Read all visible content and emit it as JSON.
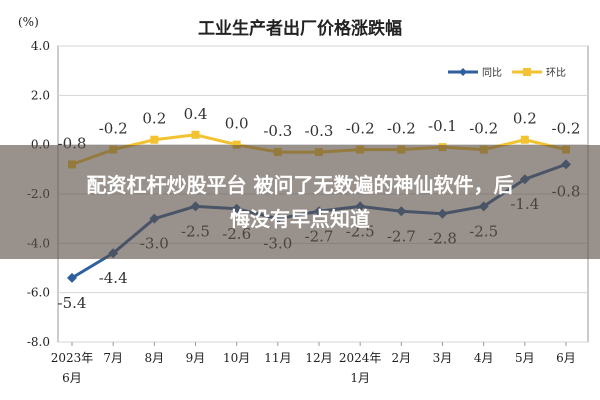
{
  "chart_data": {
    "type": "line",
    "title": "工业生产者出厂价格涨跌幅",
    "y_unit_label": "(%)",
    "ylim": [
      -8.0,
      4.0
    ],
    "y_ticks": [
      "4.0",
      "2.0",
      "0.0",
      "-2.0",
      "-4.0",
      "-6.0",
      "-8.0"
    ],
    "y_tick_values": [
      4,
      2,
      0,
      -2,
      -4,
      -6,
      -8
    ],
    "categories": [
      {
        "line1": "2023年",
        "line2": "6月"
      },
      {
        "line1": "7月",
        "line2": ""
      },
      {
        "line1": "8月",
        "line2": ""
      },
      {
        "line1": "9月",
        "line2": ""
      },
      {
        "line1": "10月",
        "line2": ""
      },
      {
        "line1": "11月",
        "line2": ""
      },
      {
        "line1": "12月",
        "line2": ""
      },
      {
        "line1": "2024年",
        "line2": "1月"
      },
      {
        "line1": "2月",
        "line2": ""
      },
      {
        "line1": "3月",
        "line2": ""
      },
      {
        "line1": "4月",
        "line2": ""
      },
      {
        "line1": "5月",
        "line2": ""
      },
      {
        "line1": "6月",
        "line2": ""
      }
    ],
    "grid": true,
    "legend_position": "top-right",
    "series": [
      {
        "name": "同比",
        "color": "#2e5f9e",
        "values": [
          -5.4,
          -4.4,
          -3.0,
          -2.5,
          -2.6,
          -3.0,
          -2.7,
          -2.5,
          -2.7,
          -2.8,
          -2.5,
          -1.4,
          -0.8
        ],
        "labels": [
          "-5.4",
          "-4.4",
          "-3.0",
          "-2.5",
          "-2.6",
          "-3.0",
          "-2.7",
          "-2.5",
          "-2.7",
          "-2.8",
          "-2.5",
          "-1.4",
          "-0.8"
        ]
      },
      {
        "name": "环比",
        "color": "#f2c230",
        "values": [
          -0.8,
          -0.2,
          0.2,
          0.4,
          0.0,
          -0.3,
          -0.3,
          -0.2,
          -0.2,
          -0.1,
          -0.2,
          0.2,
          -0.2
        ],
        "labels": [
          "-0.8",
          "-0.2",
          "0.2",
          "0.4",
          "0.0",
          "-0.3",
          "-0.3",
          "-0.2",
          "-0.2",
          "-0.1",
          "-0.2",
          "0.2",
          "-0.2"
        ]
      }
    ]
  },
  "overlay": {
    "line1": "配资杠杆炒股平台 被问了无数遍的神仙软件，后",
    "line2": "悔没有早点知道"
  }
}
